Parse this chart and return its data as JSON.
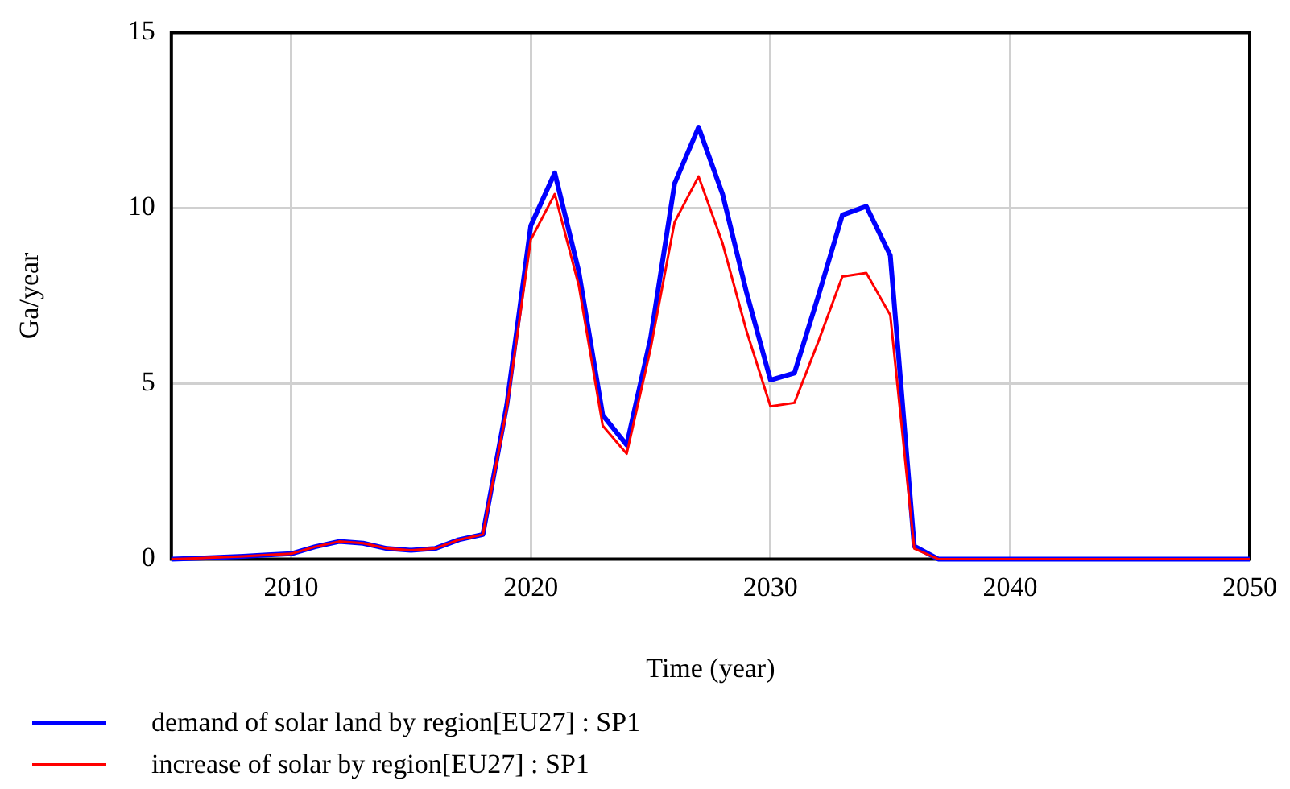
{
  "chart_data": {
    "type": "line",
    "xlabel": "Time (year)",
    "ylabel": "Ga/year",
    "x": [
      2005,
      2006,
      2007,
      2008,
      2009,
      2010,
      2011,
      2012,
      2013,
      2014,
      2015,
      2016,
      2017,
      2018,
      2019,
      2020,
      2021,
      2022,
      2023,
      2024,
      2025,
      2026,
      2027,
      2028,
      2029,
      2030,
      2031,
      2032,
      2033,
      2034,
      2035,
      2036,
      2037,
      2038,
      2039,
      2040,
      2041,
      2042,
      2043,
      2044,
      2045,
      2046,
      2047,
      2048,
      2049,
      2050
    ],
    "series": [
      {
        "name": "demand of solar land by region[EU27] : SP1",
        "color": "#0000ff",
        "values": [
          0,
          0.02,
          0.05,
          0.08,
          0.12,
          0.15,
          0.35,
          0.5,
          0.45,
          0.3,
          0.25,
          0.3,
          0.55,
          0.7,
          4.4,
          9.5,
          11.0,
          8.2,
          4.1,
          3.25,
          6.3,
          10.7,
          12.3,
          10.4,
          7.6,
          5.1,
          5.3,
          7.5,
          9.8,
          10.05,
          8.65,
          0.37,
          0,
          0,
          0,
          0,
          0,
          0,
          0,
          0,
          0,
          0,
          0,
          0,
          0,
          0
        ]
      },
      {
        "name": "increase of solar by region[EU27] : SP1",
        "color": "#ff0000",
        "values": [
          0,
          0.02,
          0.05,
          0.08,
          0.12,
          0.15,
          0.35,
          0.5,
          0.45,
          0.3,
          0.25,
          0.3,
          0.55,
          0.7,
          4.3,
          9.1,
          10.4,
          7.8,
          3.8,
          3.0,
          6.0,
          9.6,
          10.9,
          9.0,
          6.5,
          4.35,
          4.45,
          6.2,
          8.05,
          8.15,
          6.95,
          0.3,
          0,
          0,
          0,
          0,
          0,
          0,
          0,
          0,
          0,
          0,
          0,
          0,
          0,
          0
        ]
      }
    ],
    "xlim": [
      2005,
      2050
    ],
    "xticks": [
      2010,
      2020,
      2030,
      2040,
      2050
    ],
    "ylim": [
      0,
      15
    ],
    "yticks": [
      0,
      5,
      10,
      15
    ],
    "grid": true,
    "legend": "bottom left",
    "marker": "none",
    "line_style": "solid"
  }
}
